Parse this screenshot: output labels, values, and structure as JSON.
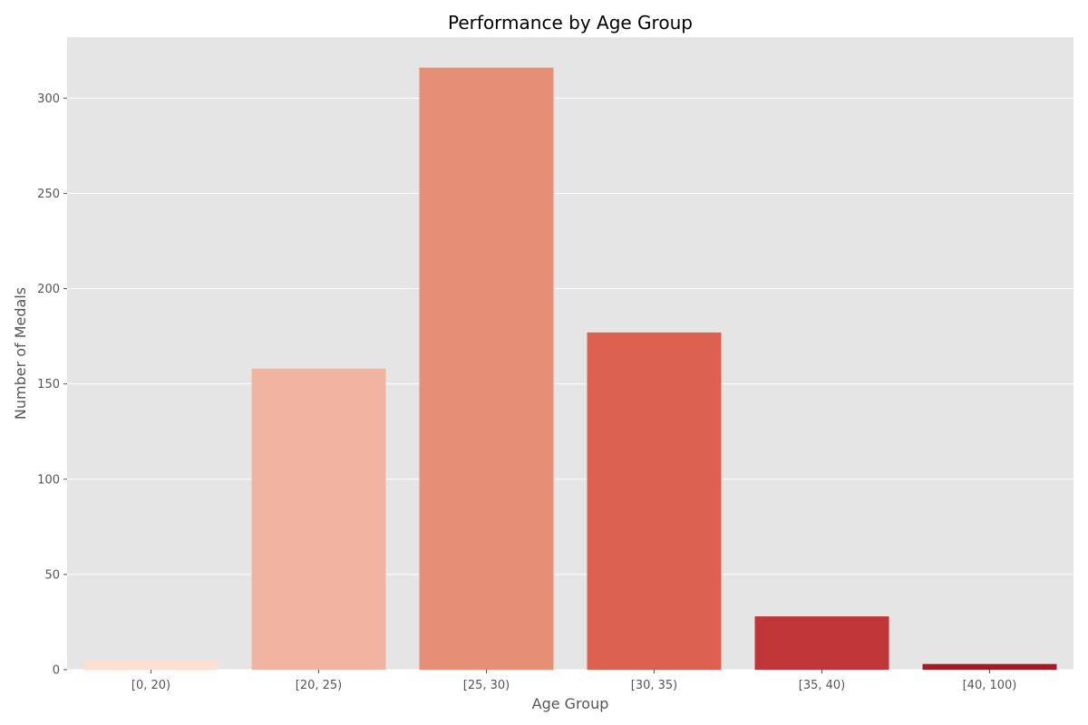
{
  "chart_data": {
    "type": "bar",
    "title": "Performance by Age Group",
    "xlabel": "Age Group",
    "ylabel": "Number of Medals",
    "categories": [
      "[0, 20)",
      "[20, 25)",
      "[25, 30)",
      "[30, 35)",
      "[35, 40)",
      "[40, 100)"
    ],
    "values": [
      5,
      158,
      316,
      177,
      28,
      3
    ],
    "colors": [
      "#fde0d2",
      "#f0b4a0",
      "#e78e76",
      "#dd6150",
      "#c03538",
      "#a31c23"
    ],
    "ylim": [
      0,
      332
    ],
    "yticks": [
      0,
      50,
      100,
      150,
      200,
      250,
      300
    ],
    "grid": true,
    "background": "#e5e5e5"
  }
}
